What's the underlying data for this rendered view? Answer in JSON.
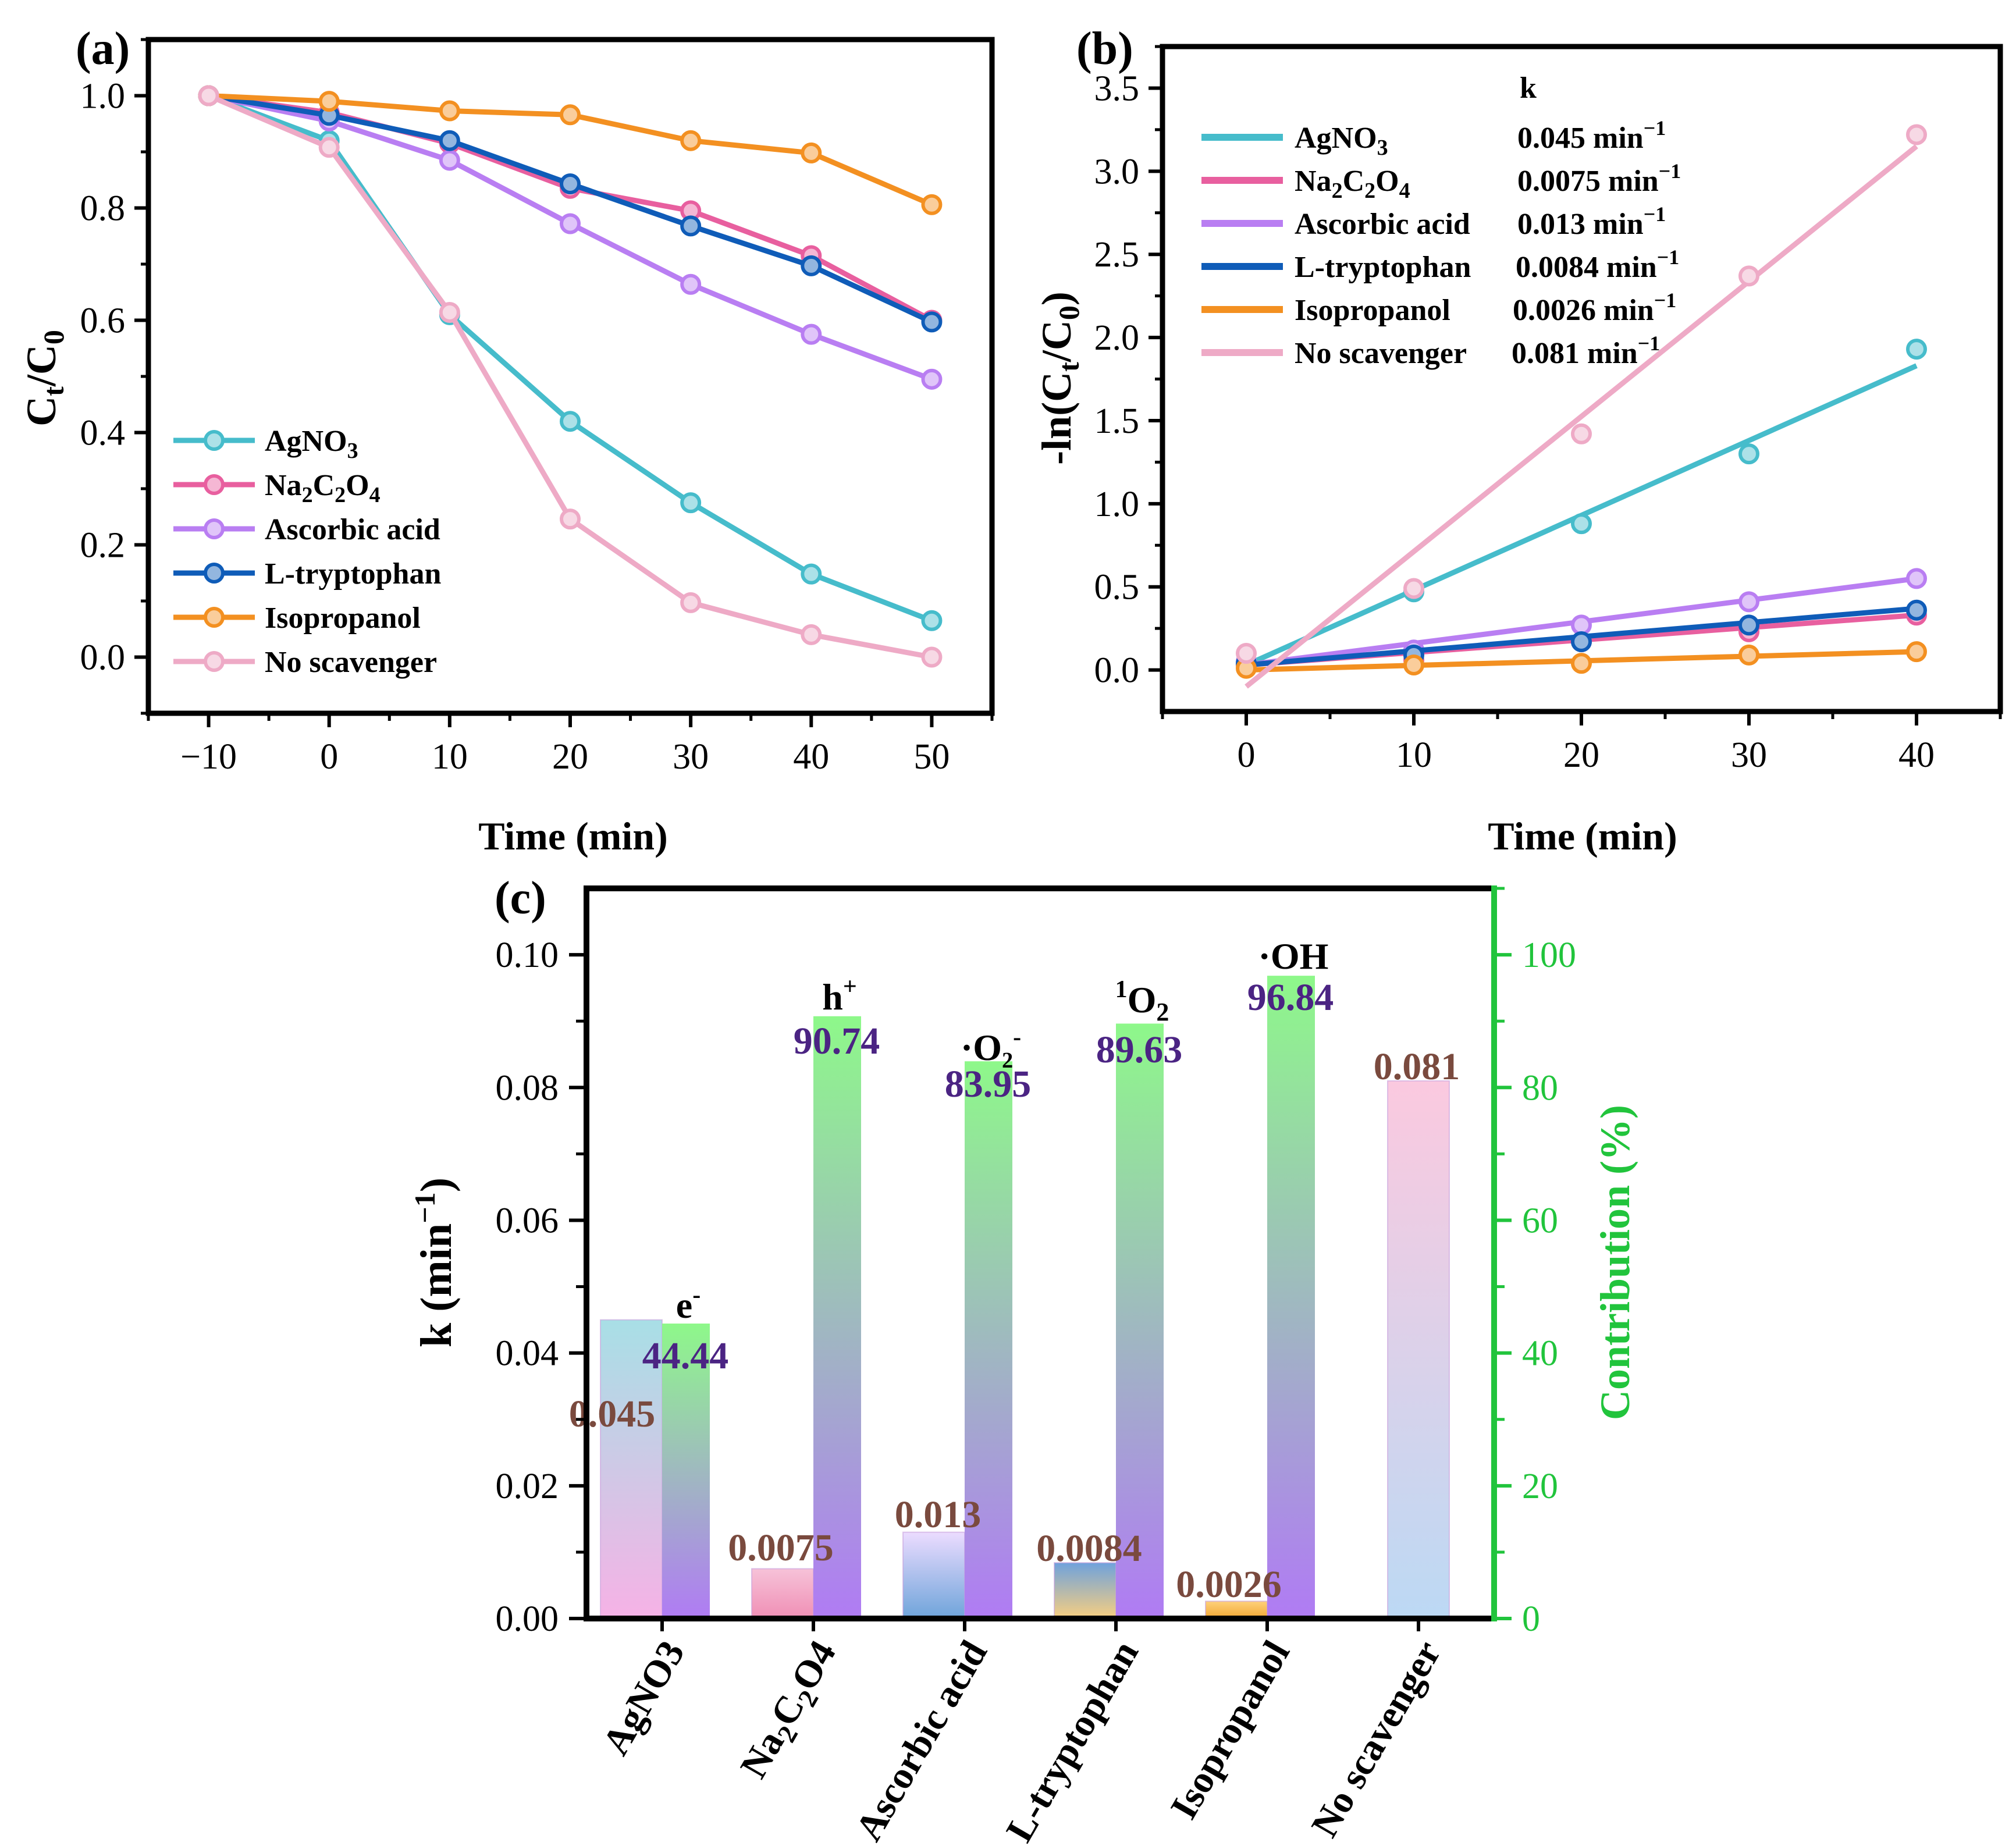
{
  "colors": {
    "AgNO3": "#46bccb",
    "Na2C2O4": "#e85f9f",
    "Ascorbic acid": "#b97ef2",
    "L-tryptophan": "#0f5cb8",
    "Isopropanol": "#f39021",
    "No scavenger": "#eeaac6",
    "contribution_axis": "#21c43c",
    "k_value_text": "#7a4a3e",
    "pct_value_text": "#4b2483"
  },
  "chart_data": [
    {
      "type": "line",
      "panel": "(a)",
      "xlabel": "Time (min)",
      "ylabel_main": "C",
      "ylabel_sub1": "t",
      "ylabel_mid": "/C",
      "ylabel_sub2": "0",
      "xlim": [
        -15,
        55
      ],
      "ylim": [
        -0.1,
        1.1
      ],
      "xticks": [
        -10,
        0,
        10,
        20,
        30,
        40,
        50
      ],
      "xtick_labels": [
        "−10",
        "0",
        "10",
        "20",
        "30",
        "40",
        "50"
      ],
      "yticks": [
        0.0,
        0.2,
        0.4,
        0.6,
        0.8,
        1.0
      ],
      "ytick_labels": [
        "0.0",
        "0.2",
        "0.4",
        "0.6",
        "0.8",
        "1.0"
      ],
      "x": [
        -10,
        0,
        10,
        20,
        30,
        40,
        50
      ],
      "series": [
        {
          "name": "AgNO3",
          "legend": "AgNO",
          "legend_sub": "3",
          "values": [
            1.0,
            0.92,
            0.61,
            0.42,
            0.275,
            0.148,
            0.065
          ]
        },
        {
          "name": "Na2C2O4",
          "legend": "Na",
          "legend_sub": "2",
          "legend_mid": "C",
          "legend_sub2": "2",
          "legend_end": "O",
          "legend_sub3": "4",
          "values": [
            1.0,
            0.97,
            0.915,
            0.835,
            0.795,
            0.715,
            0.6
          ]
        },
        {
          "name": "Ascorbic acid",
          "legend": "Ascorbic acid",
          "values": [
            1.0,
            0.955,
            0.885,
            0.772,
            0.664,
            0.575,
            0.495
          ]
        },
        {
          "name": "L-tryptophan",
          "legend": "L-tryptophan",
          "values": [
            1.0,
            0.965,
            0.92,
            0.843,
            0.768,
            0.697,
            0.597
          ]
        },
        {
          "name": "Isopropanol",
          "legend": "Isopropanol",
          "values": [
            1.0,
            0.99,
            0.973,
            0.966,
            0.92,
            0.898,
            0.806
          ]
        },
        {
          "name": "No scavenger",
          "legend": "No scavenger",
          "values": [
            1.0,
            0.908,
            0.614,
            0.246,
            0.097,
            0.04,
            0.0
          ]
        }
      ]
    },
    {
      "type": "scatter",
      "panel": "(b)",
      "xlabel": "Time (min)",
      "ylabel_pre": "-ln(C",
      "ylabel_sub1": "t",
      "ylabel_mid": "/C",
      "ylabel_sub2": "0",
      "ylabel_end": ")",
      "xlim": [
        -5,
        45
      ],
      "ylim": [
        -0.25,
        3.75
      ],
      "xticks": [
        0,
        10,
        20,
        30,
        40
      ],
      "xtick_labels": [
        "0",
        "10",
        "20",
        "30",
        "40"
      ],
      "yticks": [
        0.0,
        0.5,
        1.0,
        1.5,
        2.0,
        2.5,
        3.0,
        3.5
      ],
      "ytick_labels": [
        "0.0",
        "0.5",
        "1.0",
        "1.5",
        "2.0",
        "2.5",
        "3.0",
        "3.5"
      ],
      "k_header": "k",
      "x": [
        0,
        10,
        20,
        30,
        40
      ],
      "series": [
        {
          "name": "AgNO3",
          "legend": "AgNO",
          "legend_sub": "3",
          "k": "0.045 min",
          "k_sup": "−1",
          "values": [
            0.03,
            0.47,
            0.88,
            1.3,
            1.93
          ],
          "fit": [
            0.03,
            1.83
          ]
        },
        {
          "name": "Na2C2O4",
          "legend": "Na",
          "legend_sub": "2",
          "legend_mid": "C",
          "legend_sub2": "2",
          "legend_end": "O",
          "legend_sub3": "4",
          "k": "0.0075 min",
          "k_sup": "−1",
          "values": [
            0.03,
            0.06,
            0.17,
            0.23,
            0.33
          ],
          "fit": [
            0.03,
            0.33
          ]
        },
        {
          "name": "Ascorbic acid",
          "legend": "Ascorbic acid",
          "k": "0.013 min",
          "k_sup": "−1",
          "values": [
            0.05,
            0.12,
            0.27,
            0.41,
            0.55
          ],
          "fit": [
            0.03,
            0.55
          ]
        },
        {
          "name": "L-tryptophan",
          "legend": "L-tryptophan",
          "k": "0.0084 min",
          "k_sup": "−1",
          "values": [
            0.04,
            0.09,
            0.17,
            0.27,
            0.36
          ],
          "fit": [
            0.03,
            0.37
          ]
        },
        {
          "name": "Isopropanol",
          "legend": "Isopropanol",
          "k": "0.0026 min",
          "k_sup": "−1",
          "values": [
            0.01,
            0.03,
            0.04,
            0.09,
            0.11
          ],
          "fit": [
            0.0,
            0.11
          ]
        },
        {
          "name": "No scavenger",
          "legend": "No scavenger",
          "k": "0.081 min",
          "k_sup": "−1",
          "values": [
            0.1,
            0.49,
            1.42,
            2.37,
            3.22
          ],
          "fit": [
            -0.1,
            3.15
          ]
        }
      ]
    },
    {
      "type": "bar",
      "panel": "(c)",
      "ylabel_left_pre": "k (min",
      "ylabel_left_sup": "−1",
      "ylabel_left_end": ")",
      "ylabel_right": "Contribution (%)",
      "ylim_left": [
        0,
        0.11
      ],
      "ylim_right": [
        0,
        110
      ],
      "yticks_left": [
        0.0,
        0.02,
        0.04,
        0.06,
        0.08,
        0.1
      ],
      "ytick_labels_left": [
        "0.00",
        "0.02",
        "0.04",
        "0.06",
        "0.08",
        "0.10"
      ],
      "yticks_right": [
        0,
        20,
        40,
        60,
        80,
        100
      ],
      "ytick_labels_right": [
        "0",
        "20",
        "40",
        "60",
        "80",
        "100"
      ],
      "categories": [
        "AgNO3",
        "Na2C2O4",
        "Ascorbic acid",
        "L-tryptophan",
        "Isopropanol",
        "No scavenger"
      ],
      "category_labels": [
        "AgNO3",
        "Na2C2O4",
        "Ascorbic acid",
        "L-tryptophan",
        "Isopropanol",
        "No scavenger"
      ],
      "k_values": [
        0.045,
        0.0075,
        0.013,
        0.0084,
        0.0026,
        0.081
      ],
      "k_labels": [
        "0.045",
        "0.0075",
        "0.013",
        "0.0084",
        "0.0026",
        "0.081"
      ],
      "contributions": [
        44.44,
        90.74,
        83.95,
        89.63,
        96.84,
        null
      ],
      "contribution_labels": [
        "44.44",
        "90.74",
        "83.95",
        "89.63",
        "96.84",
        ""
      ],
      "species": [
        "e-",
        "h+",
        "·O2-",
        "1O2",
        "·OH",
        ""
      ],
      "species_display": [
        {
          "base": "e",
          "sup": "-"
        },
        {
          "base": "h",
          "sup": "+"
        },
        {
          "base": "·O₂",
          "sup": "-"
        },
        {
          "pre_sup": "1",
          "base": "O",
          "sub": "2"
        },
        {
          "base": "·OH"
        },
        {
          "base": ""
        }
      ]
    }
  ]
}
